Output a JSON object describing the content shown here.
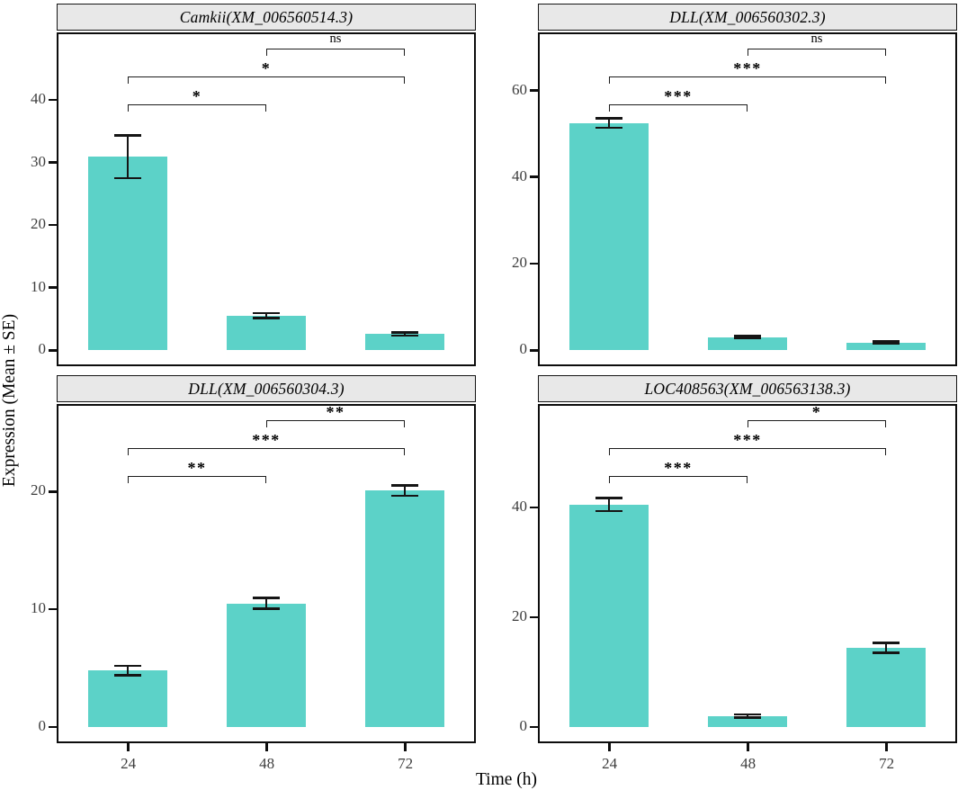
{
  "figure": {
    "bar_color": "#5cd2c8",
    "strip_bg": "#e8e8e8",
    "axis_color": "#0d0d0d",
    "tick_label_color": "#3d3d3d"
  },
  "chart_data": {
    "type": "bar",
    "categories": [
      "24",
      "48",
      "72"
    ],
    "xlabel": "Time (h)",
    "ylabel": "Expression (Mean ± SE)",
    "error_bars": "mean ± standard error",
    "legend_position": "none",
    "grid": "off",
    "panels": [
      {
        "title": "Camkii(XM_006560514.3)",
        "values": [
          30.9,
          5.5,
          2.6
        ],
        "se": [
          3.4,
          0.4,
          0.25
        ],
        "ymax": 50.5,
        "yticks": [
          0,
          10,
          20,
          30,
          40
        ],
        "significance": [
          {
            "a": "48",
            "b": "72",
            "label": "ns",
            "row": 0
          },
          {
            "a": "24",
            "b": "72",
            "label": "*",
            "row": 1
          },
          {
            "a": "24",
            "b": "48",
            "label": "*",
            "row": 2
          }
        ]
      },
      {
        "title": "DLL(XM_006560302.3)",
        "values": [
          52.5,
          3.0,
          1.8
        ],
        "se": [
          1.1,
          0.25,
          0.2
        ],
        "ymax": 73,
        "yticks": [
          0,
          20,
          40,
          60
        ],
        "significance": [
          {
            "a": "48",
            "b": "72",
            "label": "ns",
            "row": 0
          },
          {
            "a": "24",
            "b": "72",
            "label": "***",
            "row": 1
          },
          {
            "a": "24",
            "b": "48",
            "label": "***",
            "row": 2
          }
        ]
      },
      {
        "title": "DLL(XM_006560304.3)",
        "values": [
          4.8,
          10.5,
          20.1
        ],
        "se": [
          0.4,
          0.45,
          0.45
        ],
        "ymax": 27.3,
        "yticks": [
          0,
          10,
          20
        ],
        "significance": [
          {
            "a": "48",
            "b": "72",
            "label": "**",
            "row": 0
          },
          {
            "a": "24",
            "b": "72",
            "label": "***",
            "row": 1
          },
          {
            "a": "24",
            "b": "48",
            "label": "**",
            "row": 2
          }
        ]
      },
      {
        "title": "LOC408563(XM_006563138.3)",
        "values": [
          40.5,
          2.0,
          14.4
        ],
        "se": [
          1.2,
          0.3,
          0.9
        ],
        "ymax": 58.5,
        "yticks": [
          0,
          20,
          40
        ],
        "significance": [
          {
            "a": "48",
            "b": "72",
            "label": "*",
            "row": 0
          },
          {
            "a": "24",
            "b": "72",
            "label": "***",
            "row": 1
          },
          {
            "a": "24",
            "b": "48",
            "label": "***",
            "row": 2
          }
        ]
      }
    ]
  }
}
